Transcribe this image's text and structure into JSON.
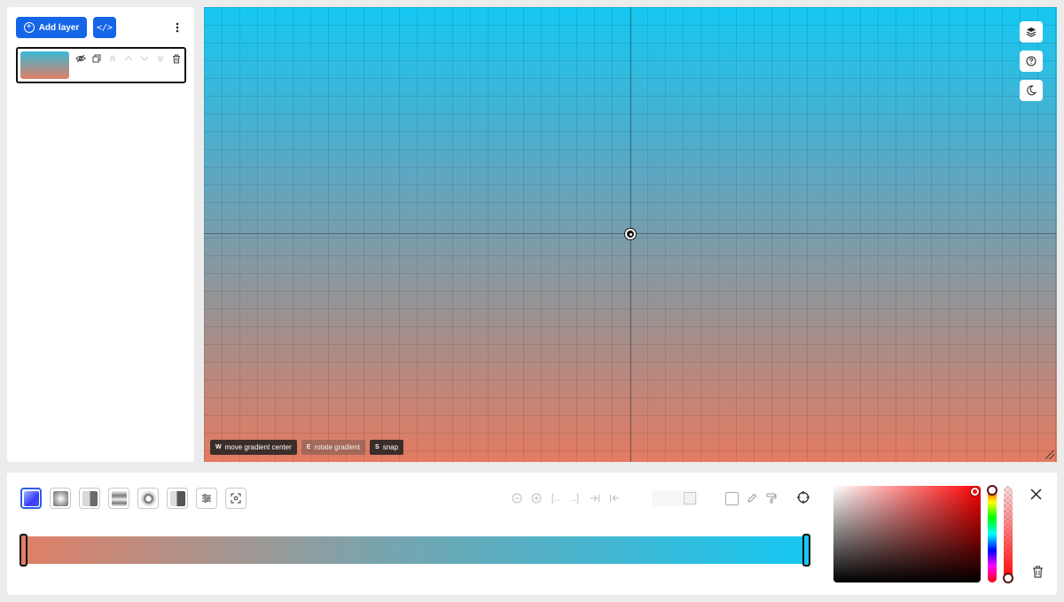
{
  "layers_panel": {
    "add_layer_label": "Add layer",
    "code_label": "</>",
    "layers": [
      {
        "thumbnail_colors": [
          "#3ab9d6",
          "#e07f66"
        ]
      }
    ]
  },
  "canvas": {
    "background_colors": [
      "#15c8f2",
      "#e47b62"
    ],
    "hints": [
      {
        "key": "W",
        "label": "move gradient center"
      },
      {
        "key": "E",
        "label": "rotate gradient"
      },
      {
        "key": "S",
        "label": "snap"
      }
    ]
  },
  "editor": {
    "gradient_types": [
      "linear",
      "radial",
      "half-linear",
      "repeating-linear",
      "ring-radial",
      "conic"
    ],
    "active_type": "linear",
    "stops": [
      {
        "color": "#e07f66",
        "position": 0
      },
      {
        "color": "#15c8f2",
        "position": 1
      }
    ],
    "mid_tool_labels": {
      "bracket_open": "[..",
      "bracket_close": "..]"
    },
    "picker": {
      "hue_color": "#ff0000"
    }
  }
}
